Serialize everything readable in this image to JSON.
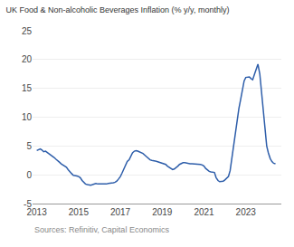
{
  "chart_data": {
    "type": "line",
    "title": "UK Food & Non-alcoholic Beverages Inflation (% y/y, monthly)",
    "annotations": [
      "Sources: Refinitiv, Capital Economics"
    ],
    "color": "#2e5eaa",
    "xlim": [
      2012.8,
      2024.7
    ],
    "xticks": [
      2013,
      2015,
      2017,
      2019,
      2021,
      2023
    ],
    "ylim": [
      -5,
      25
    ],
    "yticks": [
      -5,
      0,
      5,
      10,
      15,
      20,
      25
    ],
    "grid": "y",
    "x": [
      2013.0,
      2013.08,
      2013.17,
      2013.25,
      2013.33,
      2013.42,
      2013.5,
      2013.58,
      2013.67,
      2013.75,
      2013.83,
      2013.92,
      2014.0,
      2014.08,
      2014.17,
      2014.25,
      2014.33,
      2014.42,
      2014.5,
      2014.58,
      2014.67,
      2014.75,
      2014.83,
      2014.92,
      2015.0,
      2015.08,
      2015.17,
      2015.25,
      2015.33,
      2015.42,
      2015.5,
      2015.58,
      2015.67,
      2015.75,
      2015.83,
      2015.92,
      2016.0,
      2016.08,
      2016.17,
      2016.25,
      2016.33,
      2016.42,
      2016.5,
      2016.58,
      2016.67,
      2016.75,
      2016.83,
      2016.92,
      2017.0,
      2017.08,
      2017.17,
      2017.25,
      2017.33,
      2017.42,
      2017.5,
      2017.58,
      2017.67,
      2017.75,
      2017.83,
      2017.92,
      2018.0,
      2018.08,
      2018.17,
      2018.25,
      2018.33,
      2018.42,
      2018.5,
      2018.58,
      2018.67,
      2018.75,
      2018.83,
      2018.92,
      2019.0,
      2019.08,
      2019.17,
      2019.25,
      2019.33,
      2019.42,
      2019.5,
      2019.58,
      2019.67,
      2019.75,
      2019.83,
      2019.92,
      2020.0,
      2020.08,
      2020.17,
      2020.25,
      2020.33,
      2020.42,
      2020.5,
      2020.58,
      2020.67,
      2020.75,
      2020.83,
      2020.92,
      2021.0,
      2021.08,
      2021.17,
      2021.25,
      2021.33,
      2021.42,
      2021.5,
      2021.58,
      2021.67,
      2021.75,
      2021.83,
      2021.92,
      2022.0,
      2022.08,
      2022.17,
      2022.25,
      2022.33,
      2022.42,
      2022.5,
      2022.58,
      2022.67,
      2022.75,
      2022.83,
      2022.92,
      2023.0,
      2023.08,
      2023.17,
      2023.25,
      2023.33,
      2023.42,
      2023.5,
      2023.58,
      2023.67,
      2023.75,
      2023.83,
      2023.92,
      2024.0,
      2024.08,
      2024.17,
      2024.25,
      2024.33,
      2024.42
    ],
    "values": [
      4.2,
      4.4,
      4.5,
      4.3,
      4.0,
      4.1,
      3.9,
      3.7,
      3.5,
      3.2,
      3.0,
      2.7,
      2.5,
      2.2,
      1.9,
      1.7,
      1.5,
      1.3,
      0.9,
      0.5,
      0.2,
      -0.1,
      -0.1,
      -0.2,
      -0.3,
      -0.5,
      -1.0,
      -1.3,
      -1.6,
      -1.7,
      -1.8,
      -1.8,
      -1.7,
      -1.6,
      -1.5,
      -1.6,
      -1.6,
      -1.7,
      -1.7,
      -1.6,
      -1.6,
      -1.5,
      -1.5,
      -1.4,
      -1.4,
      -1.3,
      -1.1,
      -0.7,
      -0.3,
      0.3,
      1.0,
      1.7,
      2.3,
      2.6,
      3.2,
      3.8,
      4.1,
      4.2,
      4.1,
      4.0,
      3.9,
      3.7,
      3.4,
      3.1,
      2.8,
      2.6,
      2.5,
      2.5,
      2.4,
      2.3,
      2.2,
      2.0,
      2.0,
      1.9,
      1.8,
      1.5,
      1.3,
      1.1,
      0.9,
      1.0,
      1.2,
      1.5,
      1.8,
      2.0,
      2.1,
      2.1,
      2.0,
      2.0,
      1.9,
      1.9,
      1.9,
      1.9,
      1.8,
      1.8,
      1.8,
      1.7,
      1.5,
      1.1,
      0.8,
      0.6,
      0.5,
      0.5,
      0.4,
      -0.5,
      -1.0,
      -1.2,
      -1.2,
      -1.1,
      -0.9,
      -0.6,
      -0.3,
      0.7,
      2.8,
      5.0,
      7.5,
      9.5,
      11.5,
      13.0,
      14.6,
      16.3,
      16.9,
      17.0,
      17.0,
      16.7,
      16.5,
      17.5,
      18.3,
      19.2,
      17.5,
      14.5,
      10.5,
      7.5,
      5.0,
      3.8,
      2.8,
      2.3,
      2.0,
      1.9
    ]
  }
}
